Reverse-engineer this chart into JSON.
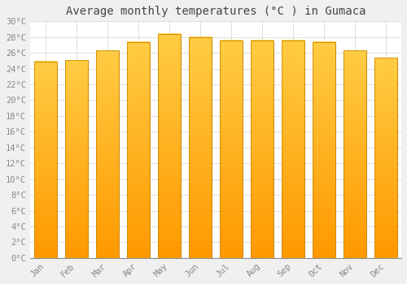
{
  "title": "Average monthly temperatures (°C ) in Gumaca",
  "months": [
    "Jan",
    "Feb",
    "Mar",
    "Apr",
    "May",
    "Jun",
    "Jul",
    "Aug",
    "Sep",
    "Oct",
    "Nov",
    "Dec"
  ],
  "temperatures": [
    24.9,
    25.1,
    26.3,
    27.4,
    28.4,
    28.0,
    27.6,
    27.6,
    27.6,
    27.4,
    26.3,
    25.4
  ],
  "bar_color_light": "#FFCC44",
  "bar_color_dark": "#FF9900",
  "bar_edge_color": "#CC8800",
  "background_color": "#F0F0F0",
  "plot_bg_color": "#FFFFFF",
  "grid_color": "#DDDDDD",
  "ylim": [
    0,
    30
  ],
  "ytick_step": 2,
  "title_fontsize": 10,
  "tick_fontsize": 7.5,
  "tick_color": "#888888",
  "title_color": "#444444",
  "font_family": "monospace"
}
